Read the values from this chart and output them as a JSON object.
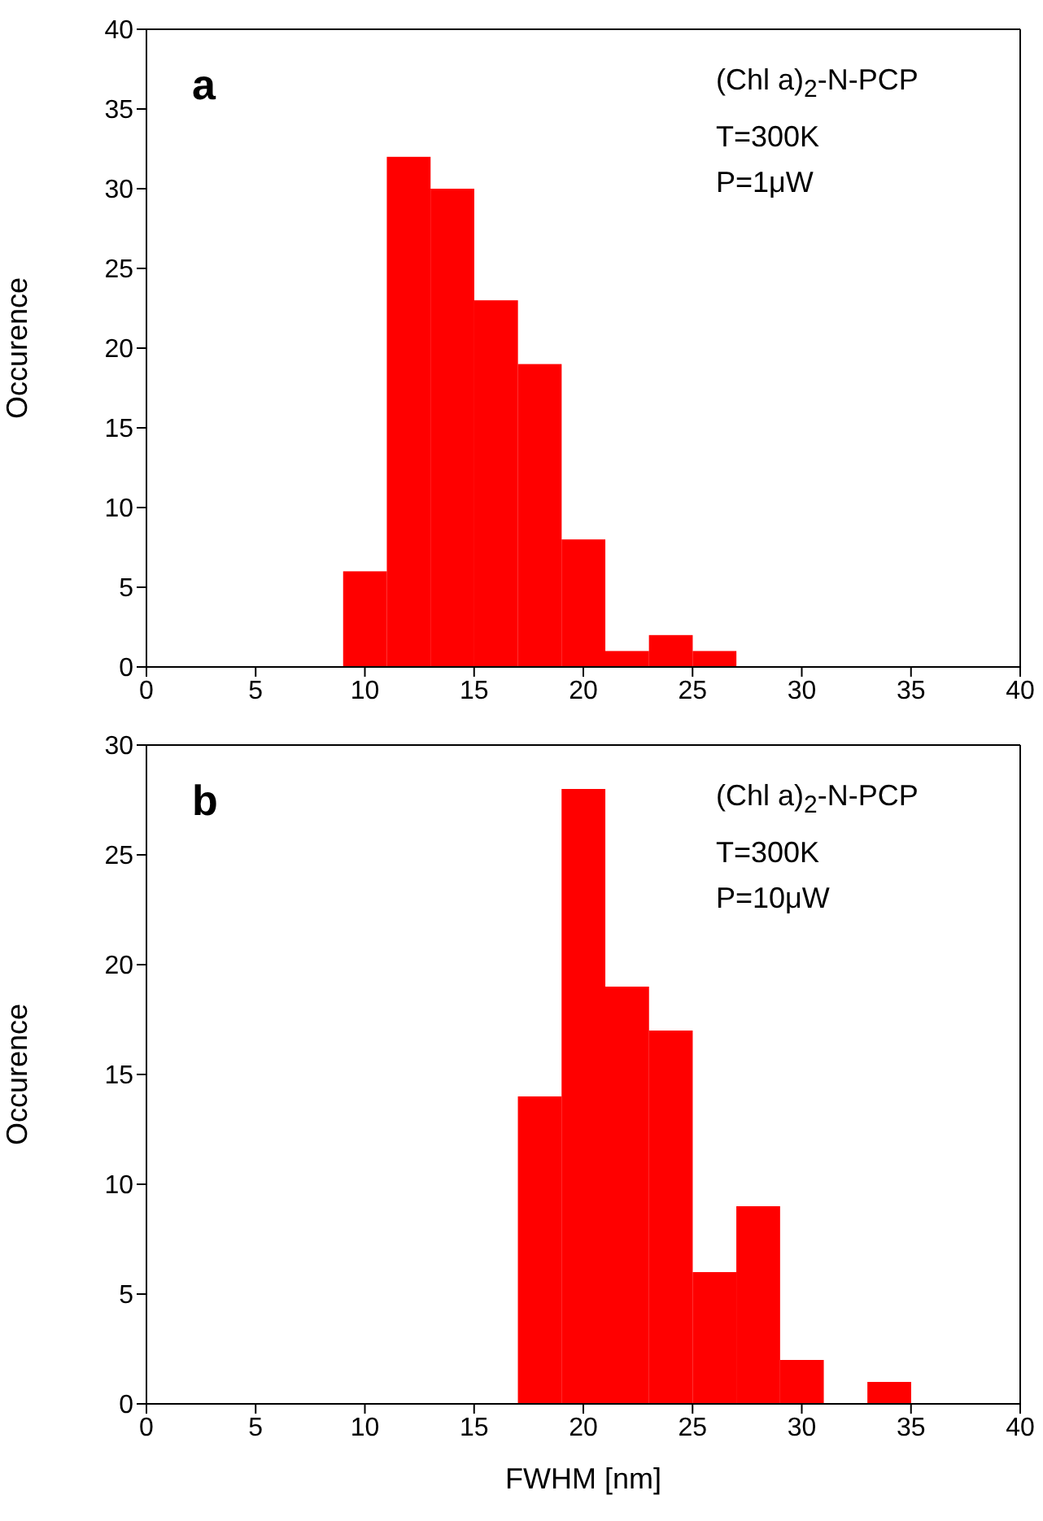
{
  "chart_data": [
    {
      "type": "histogram",
      "bins": [
        9,
        11,
        13,
        15,
        17,
        19,
        21,
        23,
        25,
        27
      ],
      "values": [
        6,
        32,
        30,
        23,
        19,
        8,
        1,
        2,
        1
      ],
      "color": "#ff0000",
      "ylabel": "Occurence",
      "xlim": [
        0,
        40
      ],
      "xticks": [
        0,
        5,
        10,
        15,
        20,
        25,
        30,
        35,
        40
      ],
      "ylim": [
        0,
        40
      ],
      "yticks": [
        0,
        5,
        10,
        15,
        20,
        25,
        30,
        35,
        40
      ],
      "annotations": [
        "a",
        "(Chl a)$_{2}$-N-PCP",
        "T=300K",
        "P=1μW"
      ]
    },
    {
      "type": "histogram",
      "bins": [
        17,
        19,
        21,
        23,
        25,
        27,
        29,
        31,
        33,
        35
      ],
      "values": [
        14,
        28,
        19,
        17,
        6,
        9,
        2,
        0,
        1
      ],
      "color": "#ff0000",
      "xlabel": "FWHM [nm]",
      "ylabel": "Occurence",
      "xlim": [
        0,
        40
      ],
      "xticks": [
        0,
        5,
        10,
        15,
        20,
        25,
        30,
        35,
        40
      ],
      "ylim": [
        0,
        30
      ],
      "yticks": [
        0,
        5,
        10,
        15,
        20,
        25,
        30
      ],
      "annotations": [
        "b",
        "(Chl a)$_{2}$-N-PCP",
        "T=300K",
        "P=10μW"
      ]
    }
  ]
}
